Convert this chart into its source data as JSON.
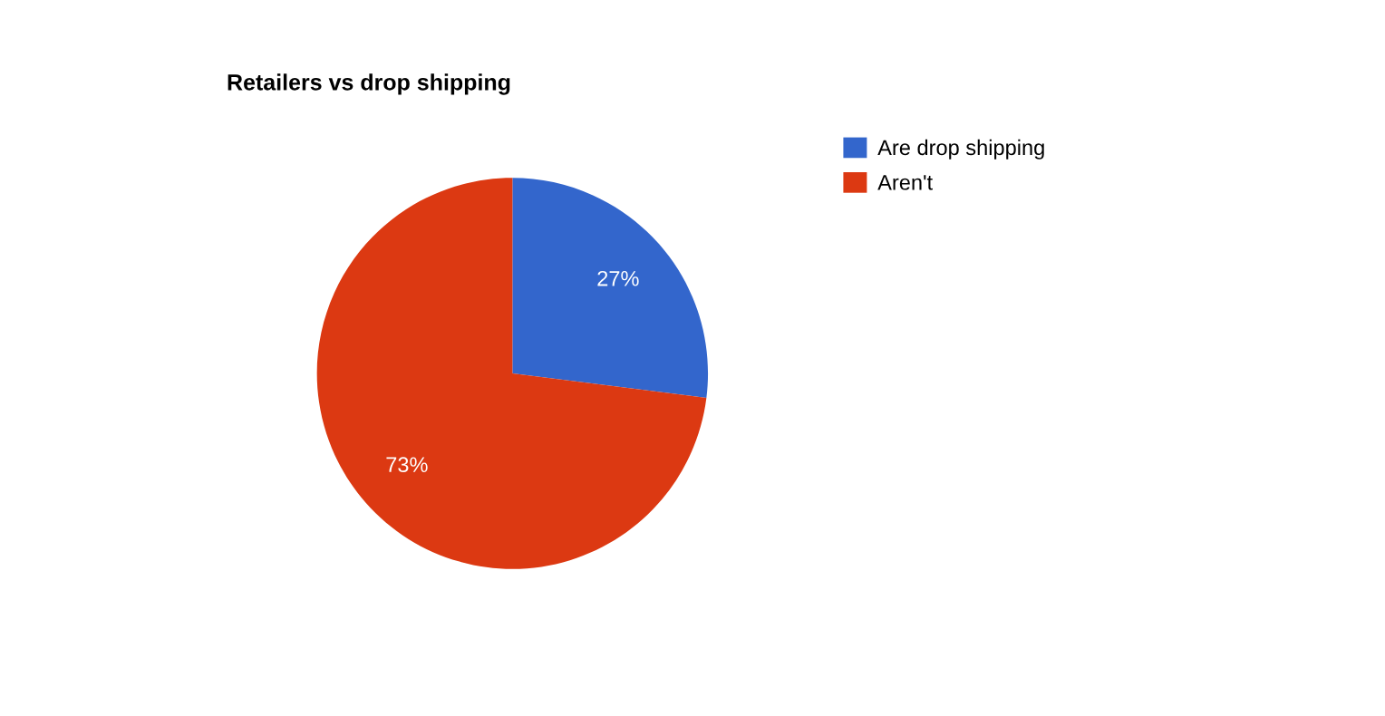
{
  "chart_data": {
    "type": "pie",
    "title": "Retailers vs drop shipping",
    "categories": [
      "Are drop shipping",
      "Aren't"
    ],
    "values": [
      27,
      73
    ],
    "colors": [
      "#3366cc",
      "#dc3912"
    ],
    "value_labels": [
      "27%",
      "73%"
    ],
    "legend": "top right"
  }
}
